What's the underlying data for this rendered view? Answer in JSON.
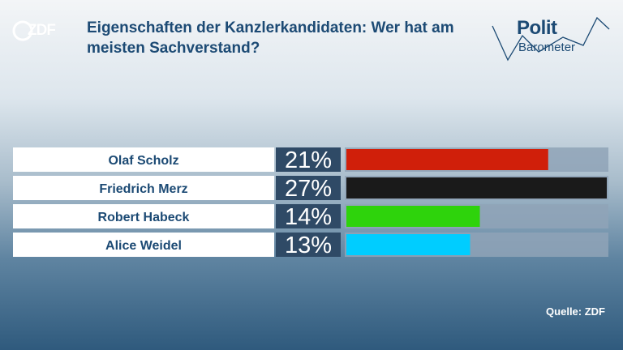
{
  "header": {
    "channel_logo_text": "ZDF",
    "title": "Eigenschaften der Kanzlerkandidaten: Wer hat am meisten Sachverstand?",
    "program_logo": {
      "line1": "Polit",
      "line2": "Barometer"
    }
  },
  "chart_data": {
    "type": "bar",
    "orientation": "horizontal",
    "title": "Eigenschaften der Kanzlerkandidaten: Wer hat am meisten Sachverstand?",
    "unit": "%",
    "categories": [
      "Olaf Scholz",
      "Friedrich Merz",
      "Robert Habeck",
      "Alice Weidel"
    ],
    "values": [
      21,
      27,
      14,
      13
    ],
    "value_labels": [
      "21%",
      "27%",
      "14%",
      "13%"
    ],
    "colors": [
      "#d01f0a",
      "#1a1a1a",
      "#2ed30c",
      "#00cdff"
    ],
    "xlim": [
      0,
      27
    ],
    "grid": false,
    "legend": "none"
  },
  "footer": {
    "source": "Quelle: ZDF"
  },
  "style": {
    "accent": "#1c4a74",
    "label_box": "#ffffff",
    "value_box": "#2f4a66",
    "track": "#8fa3b7"
  }
}
